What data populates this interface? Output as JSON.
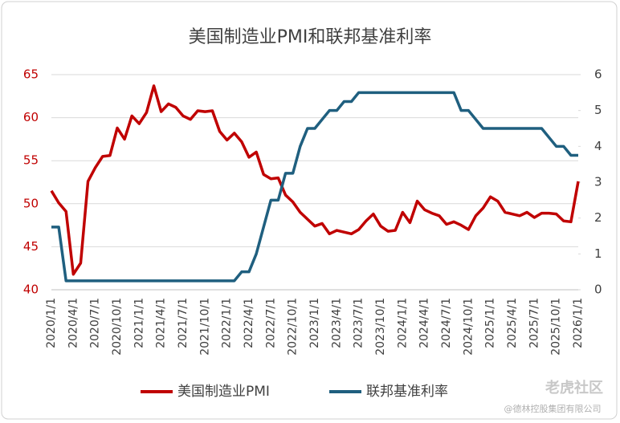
{
  "chart_data": {
    "type": "line",
    "title": "美国制造业PMI和联邦基准利率",
    "categories": [
      "2020/1/1",
      null,
      null,
      "2020/4/1",
      null,
      null,
      "2020/7/1",
      null,
      null,
      "2020/10/1",
      null,
      null,
      "2021/1/1",
      null,
      null,
      "2021/4/1",
      null,
      null,
      "2021/7/1",
      null,
      null,
      "2021/10/1",
      null,
      null,
      "2022/1/1",
      null,
      null,
      "2022/4/1",
      null,
      null,
      "2022/7/1",
      null,
      null,
      "2022/10/1",
      null,
      null,
      "2023/1/1",
      null,
      null,
      "2023/4/1",
      null,
      null,
      "2023/7/1",
      null,
      null,
      "2023/10/1",
      null,
      null,
      "2024/1/1",
      null,
      null,
      "2024/4/1",
      null,
      null,
      "2024/7/1",
      null,
      null,
      "2024/10/1",
      null,
      null,
      "2025/1/1",
      null,
      null,
      "2025/4/1",
      null,
      null,
      "2025/7/1",
      null,
      null,
      "2025/10/1",
      null,
      null,
      "2026/1/1"
    ],
    "series": [
      {
        "name": "美国制造业PMI",
        "color": "#c00000",
        "values": [
          51.5,
          50.1,
          49.1,
          41.8,
          43.1,
          52.6,
          54.2,
          55.5,
          55.6,
          58.8,
          57.5,
          60.2,
          59.3,
          60.6,
          63.7,
          60.7,
          61.6,
          61.2,
          60.2,
          59.8,
          60.8,
          60.7,
          60.8,
          58.4,
          57.4,
          58.2,
          57.2,
          55.4,
          56.0,
          53.4,
          52.9,
          53.0,
          51.0,
          50.2,
          49.0,
          48.2,
          47.4,
          47.7,
          46.5,
          46.9,
          46.7,
          46.5,
          47.0,
          48.0,
          48.8,
          47.4,
          46.8,
          46.9,
          49.0,
          47.8,
          50.3,
          49.3,
          48.9,
          48.6,
          47.6,
          47.9,
          47.5,
          47.0,
          48.6,
          49.5,
          50.8,
          50.3,
          49.0,
          48.8,
          48.6,
          49.0,
          48.4,
          48.9,
          48.9,
          48.8,
          48.0,
          47.9,
          52.6
        ]
      },
      {
        "name": "联邦基准利率",
        "color": "#1f5f7f",
        "axis": "y2",
        "values": [
          1.75,
          1.75,
          0.25,
          0.25,
          0.25,
          0.25,
          0.25,
          0.25,
          0.25,
          0.25,
          0.25,
          0.25,
          0.25,
          0.25,
          0.25,
          0.25,
          0.25,
          0.25,
          0.25,
          0.25,
          0.25,
          0.25,
          0.25,
          0.25,
          0.25,
          0.25,
          0.5,
          0.5,
          1.0,
          1.75,
          2.5,
          2.5,
          3.25,
          3.25,
          4.0,
          4.5,
          4.5,
          4.75,
          5.0,
          5.0,
          5.25,
          5.25,
          5.5,
          5.5,
          5.5,
          5.5,
          5.5,
          5.5,
          5.5,
          5.5,
          5.5,
          5.5,
          5.5,
          5.5,
          5.5,
          5.5,
          5.0,
          5.0,
          4.75,
          4.5,
          4.5,
          4.5,
          4.5,
          4.5,
          4.5,
          4.5,
          4.5,
          4.5,
          4.25,
          4.0,
          4.0,
          3.75,
          3.75
        ]
      }
    ],
    "ylim": [
      40,
      65
    ],
    "yticks": [
      40,
      45,
      50,
      55,
      60,
      65
    ],
    "y2lim": [
      0,
      6
    ],
    "y2ticks": [
      0,
      1,
      2,
      3,
      4,
      5,
      6
    ],
    "grid": true,
    "legend": "bottom",
    "annotations": [
      "老虎社区",
      "@德林控股集团有限公司"
    ]
  }
}
